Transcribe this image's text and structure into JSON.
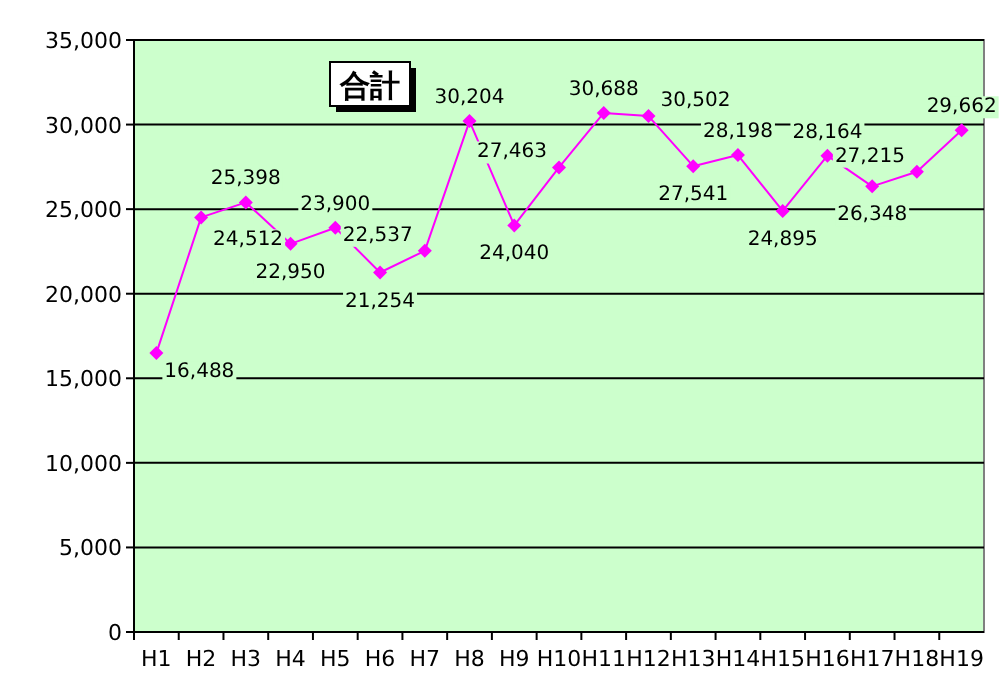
{
  "chart_data": {
    "type": "line",
    "title": "合計",
    "categories": [
      "H1",
      "H2",
      "H3",
      "H4",
      "H5",
      "H6",
      "H7",
      "H8",
      "H9",
      "H10",
      "H11",
      "H12",
      "H13",
      "H14",
      "H15",
      "H16",
      "H17",
      "H18",
      "H19"
    ],
    "series": [
      {
        "color": "#ff00ff",
        "values": [
          16488,
          24512,
          25398,
          22950,
          23900,
          21254,
          22537,
          30204,
          24040,
          27463,
          30688,
          30502,
          27541,
          28198,
          24895,
          28164,
          26348,
          27215,
          29662
        ]
      }
    ],
    "ylim": [
      0,
      35000
    ],
    "yticks": [
      {
        "value": 0,
        "label": "0"
      },
      {
        "value": 5000,
        "label": "5,000"
      },
      {
        "value": 10000,
        "label": "10,000"
      },
      {
        "value": 15000,
        "label": "15,000"
      },
      {
        "value": 20000,
        "label": "20,000"
      },
      {
        "value": 25000,
        "label": "25,000"
      },
      {
        "value": 30000,
        "label": "30,000"
      },
      {
        "value": 35000,
        "label": "35,000"
      }
    ],
    "value_labels": [
      "16,488",
      "24,512",
      "25,398",
      "22,950",
      "23,900",
      "21,254",
      "22,537",
      "30,204",
      "24,040",
      "27,463",
      "30,688",
      "30,502",
      "27,541",
      "28,198",
      "24,895",
      "28,164",
      "26,348",
      "27,215",
      "29,662"
    ],
    "grid": "y",
    "marker": "diamond",
    "line_style": "solid"
  }
}
